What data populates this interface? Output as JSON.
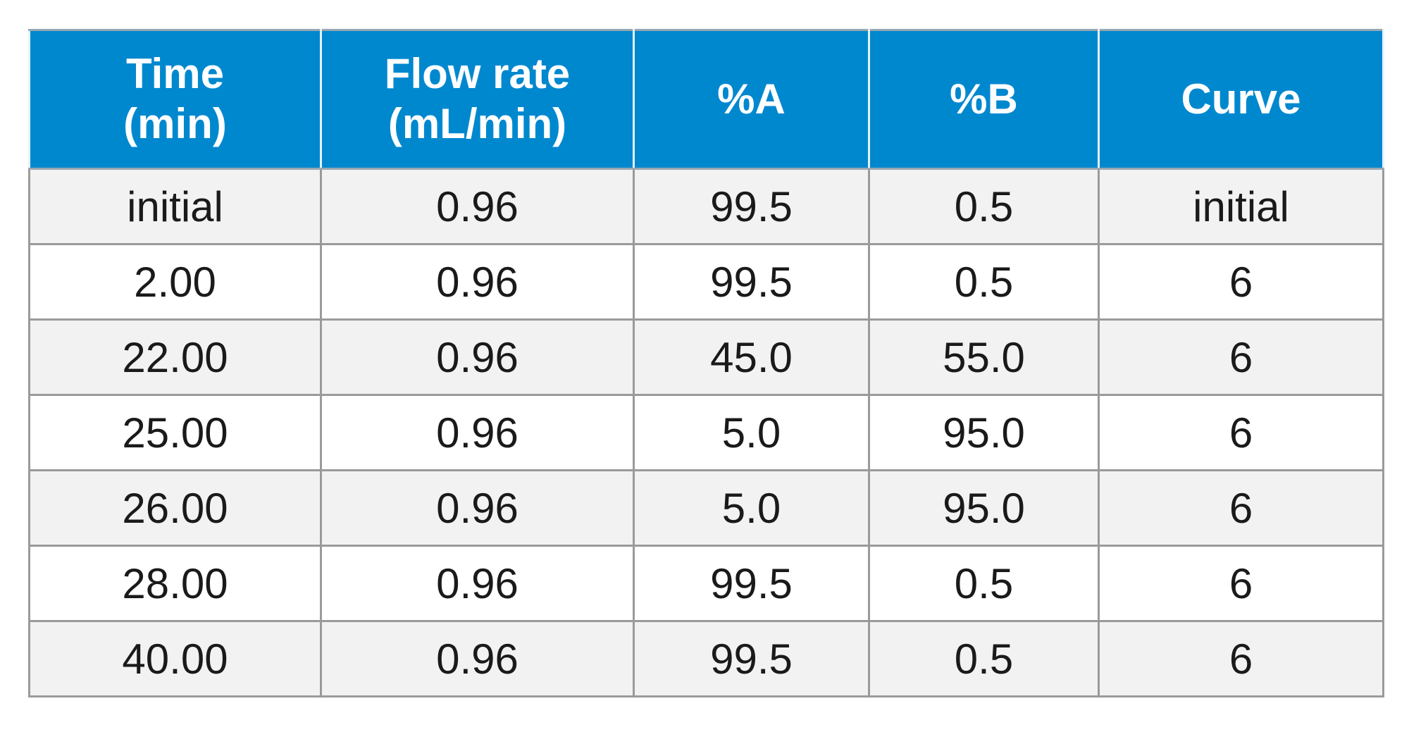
{
  "table": {
    "headers": [
      {
        "line1": "Time",
        "line2": "(min)"
      },
      {
        "line1": "Flow rate",
        "line2": "(mL/min)"
      },
      {
        "line1": "%A",
        "line2": ""
      },
      {
        "line1": "%B",
        "line2": ""
      },
      {
        "line1": "Curve",
        "line2": ""
      }
    ],
    "rows": [
      [
        "initial",
        "0.96",
        "99.5",
        "0.5",
        "initial"
      ],
      [
        "2.00",
        "0.96",
        "99.5",
        "0.5",
        "6"
      ],
      [
        "22.00",
        "0.96",
        "45.0",
        "55.0",
        "6"
      ],
      [
        "25.00",
        "0.96",
        "5.0",
        "95.0",
        "6"
      ],
      [
        "26.00",
        "0.96",
        "5.0",
        "95.0",
        "6"
      ],
      [
        "28.00",
        "0.96",
        "99.5",
        "0.5",
        "6"
      ],
      [
        "40.00",
        "0.96",
        "99.5",
        "0.5",
        "6"
      ]
    ]
  },
  "colors": {
    "header_bg": "#0088cf",
    "header_text": "#ffffff",
    "row_shaded": "#f2f2f3",
    "row_plain": "#ffffff",
    "grid": "#9a9a9a"
  }
}
